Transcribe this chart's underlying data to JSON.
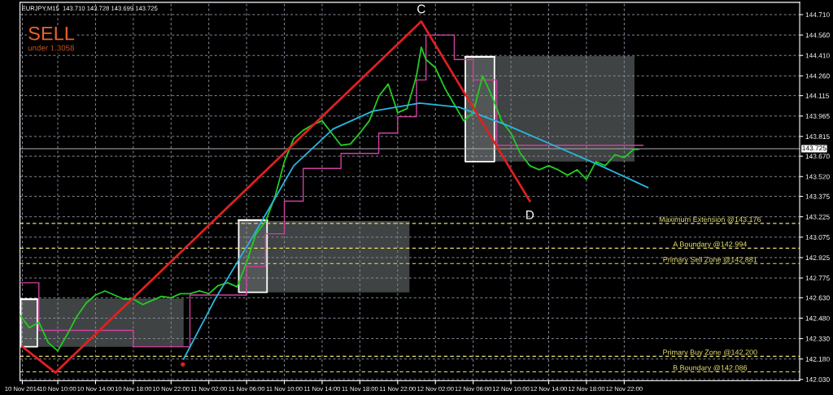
{
  "chart_data": {
    "type": "line",
    "title": "EURJPY,M15  143.710 143.728 143.699 143.725",
    "annotations": [
      "SELL",
      "under 1.3058",
      {
        "text": "C",
        "x": "2014-11-12T00:30",
        "y": 144.66
      },
      {
        "text": "D",
        "x": "2014-11-12T12:00",
        "y": 143.34
      }
    ],
    "xlim": [
      "2014-11-10T06:00",
      "2014-11-13T16:35"
    ],
    "ylim": [
      142.02,
      144.8
    ],
    "xticks": [
      {
        "value": "2014-11-10T06:15",
        "label": "10 Nov 2014"
      },
      {
        "value": "2014-11-10T10:00",
        "label": "10 Nov 10:00"
      },
      {
        "value": "2014-11-10T14:00",
        "label": "10 Nov 14:00"
      },
      {
        "value": "2014-11-10T18:00",
        "label": "10 Nov 18:00"
      },
      {
        "value": "2014-11-10T22:00",
        "label": "10 Nov 22:00"
      },
      {
        "value": "2014-11-11T02:00",
        "label": "11 Nov 02:00"
      },
      {
        "value": "2014-11-11T06:00",
        "label": "11 Nov 06:00"
      },
      {
        "value": "2014-11-11T10:00",
        "label": "11 Nov 10:00"
      },
      {
        "value": "2014-11-11T14:00",
        "label": "11 Nov 14:00"
      },
      {
        "value": "2014-11-11T18:00",
        "label": "11 Nov 18:00"
      },
      {
        "value": "2014-11-11T22:00",
        "label": "11 Nov 22:00"
      },
      {
        "value": "2014-11-12T02:00",
        "label": "12 Nov 02:00"
      },
      {
        "value": "2014-11-12T06:00",
        "label": "12 Nov 06:00"
      },
      {
        "value": "2014-11-12T10:00",
        "label": "12 Nov 10:00"
      },
      {
        "value": "2014-11-12T14:00",
        "label": "12 Nov 14:00"
      },
      {
        "value": "2014-11-12T18:00",
        "label": "12 Nov 18:00"
      },
      {
        "value": "2014-11-12T22:00",
        "label": "12 Nov 22:00"
      }
    ],
    "yticks": [
      {
        "value": 144.71,
        "label": "144.710"
      },
      {
        "value": 144.56,
        "label": "144.560"
      },
      {
        "value": 144.41,
        "label": "144.410"
      },
      {
        "value": 144.26,
        "label": "144.260"
      },
      144.115,
      143.965,
      143.815,
      {
        "value": 143.67,
        "label": "143.670"
      },
      {
        "value": 143.52,
        "label": "143.520"
      },
      143.375,
      143.225,
      143.075,
      142.925,
      142.775,
      {
        "value": 142.63,
        "label": "142.630"
      },
      {
        "value": 142.48,
        "label": "142.480"
      },
      {
        "value": 142.33,
        "label": "142.330"
      },
      {
        "value": 142.18,
        "label": "142.180"
      },
      {
        "value": 142.03,
        "label": "142.030"
      }
    ],
    "grid": true,
    "series": [
      {
        "type": "line",
        "color": "#4a4f4f",
        "x": [
          "2014-11-10T06:00",
          "2014-11-10T23:20"
        ],
        "values": [
          142.62,
          142.62
        ],
        "lower": [
          142.27,
          142.27
        ],
        "upper": [
          142.62,
          142.62
        ]
      },
      {
        "type": "line",
        "color": "#4a4f4f",
        "x": [
          "2014-11-11T05:10",
          "2014-11-11T23:15"
        ],
        "values": [
          143.19,
          143.19
        ],
        "lower": [
          142.67,
          142.67
        ],
        "upper": [
          143.19,
          143.19
        ]
      },
      {
        "type": "line",
        "color": "#4a4f4f",
        "x": [
          "2014-11-12T05:10",
          "2014-11-12T23:05"
        ],
        "values": [
          144.4,
          144.4
        ],
        "lower": [
          143.63,
          143.63
        ],
        "upper": [
          144.4,
          144.4
        ]
      },
      {
        "type": "line",
        "color": "#ffffff",
        "x": [
          "2014-11-10T06:05",
          "2014-11-10T07:50"
        ],
        "values": [
          142.62,
          142.62
        ],
        "lower": [
          142.27,
          142.27
        ],
        "upper": [
          142.62,
          142.62
        ]
      },
      {
        "type": "line",
        "color": "#ffffff",
        "x": [
          "2014-11-11T05:10",
          "2014-11-11T08:10"
        ],
        "values": [
          143.2,
          143.2
        ],
        "lower": [
          142.67,
          142.67
        ],
        "upper": [
          143.2,
          143.2
        ]
      },
      {
        "type": "line",
        "color": "#ffffff",
        "x": [
          "2014-11-12T05:10",
          "2014-11-12T08:15"
        ],
        "values": [
          144.4,
          144.4
        ],
        "lower": [
          143.63,
          143.63
        ],
        "upper": [
          144.4,
          144.4
        ]
      },
      {
        "type": "step",
        "color": "#d040a0",
        "x": [
          "2014-11-10T06:00",
          "2014-11-10T08:00",
          "2014-11-10T18:00",
          "2014-11-11T00:00",
          "2014-11-11T06:00",
          "2014-11-11T08:00",
          "2014-11-11T10:00",
          "2014-11-11T12:00",
          "2014-11-11T16:00",
          "2014-11-11T20:00",
          "2014-11-11T22:00",
          "2014-11-12T00:00",
          "2014-11-12T01:00",
          "2014-11-12T04:00",
          "2014-11-12T06:00",
          "2014-11-12T08:30",
          "2014-11-13T00:00"
        ],
        "values": [
          142.74,
          142.39,
          142.27,
          142.65,
          142.86,
          143.1,
          143.34,
          143.58,
          143.69,
          143.84,
          143.96,
          144.23,
          144.56,
          144.38,
          144.23,
          143.75,
          143.75
        ]
      },
      {
        "color": "#22cc22",
        "x": [
          "2014-11-10T06:00",
          "2014-11-10T07:00",
          "2014-11-10T08:00",
          "2014-11-10T09:00",
          "2014-11-10T10:00",
          "2014-11-10T11:00",
          "2014-11-10T12:00",
          "2014-11-10T13:00",
          "2014-11-10T14:00",
          "2014-11-10T15:00",
          "2014-11-10T16:00",
          "2014-11-10T17:00",
          "2014-11-10T18:00",
          "2014-11-10T19:00",
          "2014-11-10T20:00",
          "2014-11-10T21:00",
          "2014-11-10T22:00",
          "2014-11-10T23:00",
          "2014-11-11T00:00",
          "2014-11-11T01:00",
          "2014-11-11T02:00",
          "2014-11-11T03:00",
          "2014-11-11T04:00",
          "2014-11-11T05:00",
          "2014-11-11T06:00",
          "2014-11-11T07:00",
          "2014-11-11T08:00",
          "2014-11-11T09:00",
          "2014-11-11T10:00",
          "2014-11-11T11:00",
          "2014-11-11T12:00",
          "2014-11-11T13:00",
          "2014-11-11T14:00",
          "2014-11-11T15:00",
          "2014-11-11T16:00",
          "2014-11-11T17:00",
          "2014-11-11T18:00",
          "2014-11-11T19:00",
          "2014-11-11T20:00",
          "2014-11-11T21:00",
          "2014-11-11T22:00",
          "2014-11-11T23:00",
          "2014-11-12T00:00",
          "2014-11-12T00:30",
          "2014-11-12T01:00",
          "2014-11-12T02:00",
          "2014-11-12T03:00",
          "2014-11-12T04:00",
          "2014-11-12T05:00",
          "2014-11-12T06:00",
          "2014-11-12T07:00",
          "2014-11-12T08:00",
          "2014-11-12T09:00",
          "2014-11-12T10:00",
          "2014-11-12T11:00",
          "2014-11-12T12:00",
          "2014-11-12T13:00",
          "2014-11-12T14:00",
          "2014-11-12T15:00",
          "2014-11-12T16:00",
          "2014-11-12T17:00",
          "2014-11-12T18:00",
          "2014-11-12T19:00",
          "2014-11-12T20:00",
          "2014-11-12T21:00",
          "2014-11-12T22:00",
          "2014-11-12T23:00",
          "2014-11-12T23:30"
        ],
        "values": [
          142.5,
          142.41,
          142.45,
          142.3,
          142.24,
          142.36,
          142.49,
          142.59,
          142.65,
          142.68,
          142.65,
          142.62,
          142.62,
          142.58,
          142.61,
          142.64,
          142.63,
          142.66,
          142.66,
          142.68,
          142.66,
          142.72,
          142.74,
          142.71,
          142.89,
          143.1,
          143.19,
          143.37,
          143.63,
          143.8,
          143.86,
          143.9,
          143.93,
          143.84,
          143.75,
          143.76,
          143.84,
          143.93,
          144.11,
          144.2,
          143.99,
          144.02,
          144.26,
          144.47,
          144.38,
          144.32,
          144.17,
          144.05,
          143.93,
          143.99,
          144.26,
          144.11,
          143.93,
          143.84,
          143.69,
          143.6,
          143.57,
          143.6,
          143.57,
          143.53,
          143.57,
          143.5,
          143.63,
          143.6,
          143.68,
          143.66,
          143.72,
          143.72
        ]
      },
      {
        "type": "line",
        "color": "#29b6e0",
        "x": [
          "2014-11-10T23:20",
          "2014-11-11T02:40",
          "2014-11-11T06:50",
          "2014-11-11T11:00",
          "2014-11-11T15:10",
          "2014-11-11T19:20",
          "2014-11-12T00:20",
          "2014-11-12T04:30",
          "2014-11-12T09:30",
          "2014-11-12T14:30",
          "2014-11-12T19:30",
          "2014-11-13T00:30"
        ],
        "values": [
          142.18,
          142.62,
          143.1,
          143.6,
          143.87,
          144.0,
          144.06,
          144.03,
          143.9,
          143.75,
          143.6,
          143.44
        ]
      },
      {
        "type": "line",
        "color": "#e02020",
        "x": [
          "2014-11-10T06:15",
          "2014-11-10T09:45",
          "2014-11-12T00:30",
          "2014-11-12T12:00"
        ],
        "values": [
          142.27,
          142.08,
          144.66,
          143.34
        ]
      },
      {
        "type": "scatter",
        "color": "#e02020",
        "x": [
          "2014-11-10T23:15"
        ],
        "values": [
          142.14
        ]
      }
    ],
    "ref_lines": [
      {
        "axis": "y",
        "value": 143.725,
        "label": "143.725",
        "color": "#b0b0b0",
        "line_style": "solid"
      },
      {
        "axis": "y",
        "value": 143.176,
        "label": "Maximum Extension @143.176",
        "color": "#e8e070",
        "line_style": "dashed"
      },
      {
        "axis": "y",
        "value": 142.994,
        "label": "A Boundary @142.994",
        "color": "#e8e070",
        "line_style": "dashed"
      },
      {
        "axis": "y",
        "value": 142.881,
        "label": "Primary Sell Zone @142.881",
        "color": "#e8e070",
        "line_style": "dashed"
      },
      {
        "axis": "y",
        "value": 142.2,
        "label": "Primary Buy Zone @142.200",
        "color": "#e8e070",
        "line_style": "dashed"
      },
      {
        "axis": "y",
        "value": 142.086,
        "label": "B Boundary @142.086",
        "color": "#e8e070",
        "line_style": "dashed"
      }
    ]
  }
}
